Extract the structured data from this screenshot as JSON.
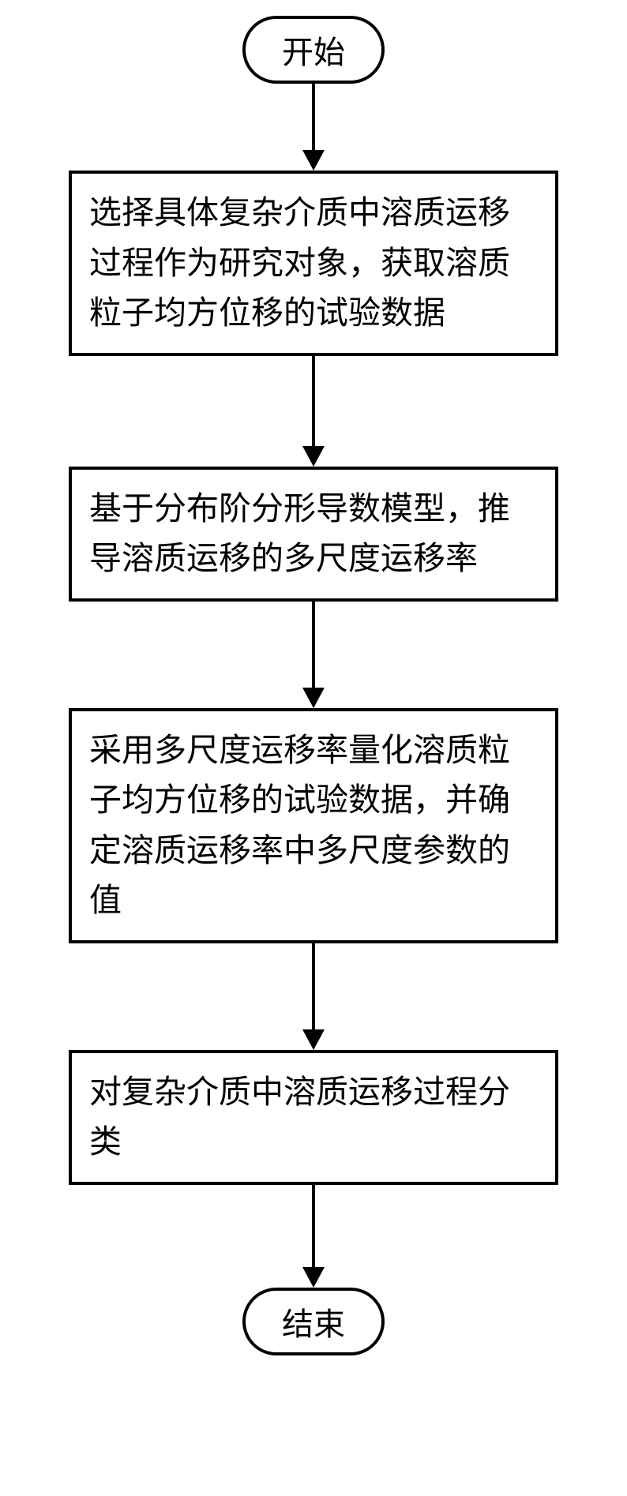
{
  "flowchart": {
    "type": "flowchart",
    "direction": "vertical",
    "background_color": "#ffffff",
    "border_color": "#000000",
    "border_width": 4,
    "font_family": "SimSun",
    "node_fontsize": 41,
    "terminal_fontsize": 40,
    "line_height": 1.55,
    "process_width": 620,
    "terminal_min_width": 180,
    "arrow": {
      "shaft_width": 4,
      "head_width": 28,
      "head_height": 26,
      "color": "#000000"
    },
    "nodes": [
      {
        "id": "start",
        "shape": "terminal",
        "label": "开始"
      },
      {
        "id": "step1",
        "shape": "process",
        "label": "选择具体复杂介质中溶质运移过程作为研究对象，获取溶质粒子均方位移的试验数据"
      },
      {
        "id": "step2",
        "shape": "process",
        "label": "基于分布阶分形导数模型，推导溶质运移的多尺度运移率"
      },
      {
        "id": "step3",
        "shape": "process",
        "label": "采用多尺度运移率量化溶质粒子均方位移的试验数据，并确定溶质运移率中多尺度参数的值"
      },
      {
        "id": "step4",
        "shape": "process",
        "label": "对复杂介质中溶质运移过程分类"
      },
      {
        "id": "end",
        "shape": "terminal",
        "label": "结束"
      }
    ],
    "edges": [
      {
        "from": "start",
        "to": "step1",
        "shaft_length": 85
      },
      {
        "from": "step1",
        "to": "step2",
        "shaft_length": 115
      },
      {
        "from": "step2",
        "to": "step3",
        "shaft_length": 110
      },
      {
        "from": "step3",
        "to": "step4",
        "shaft_length": 110
      },
      {
        "from": "step4",
        "to": "end",
        "shaft_length": 105
      }
    ]
  }
}
